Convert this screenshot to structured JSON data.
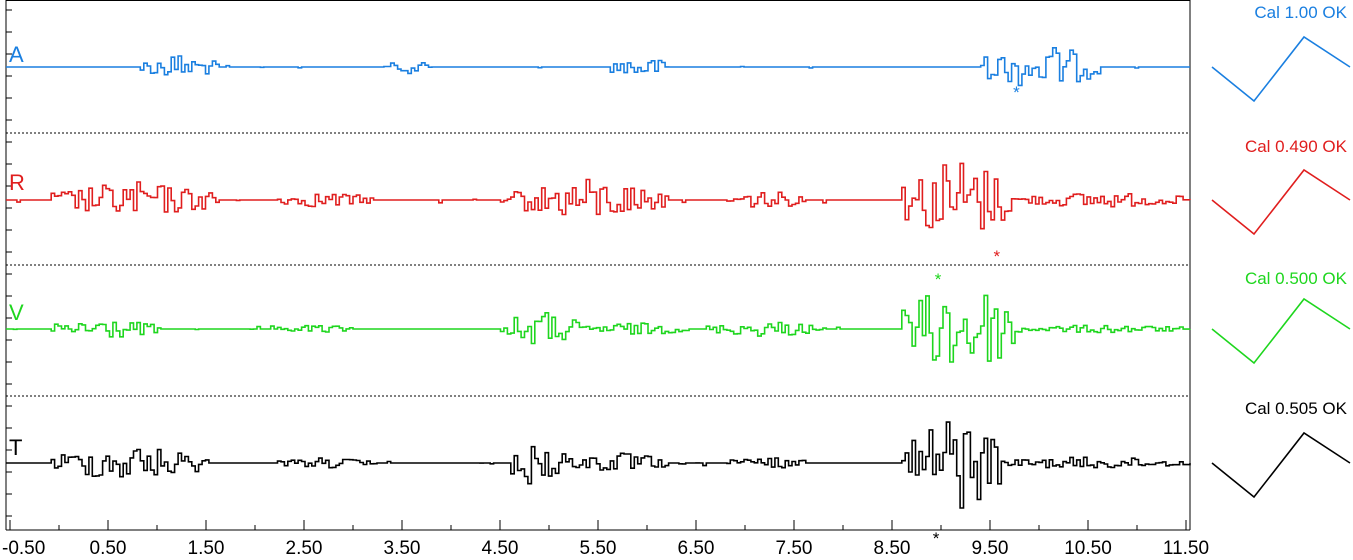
{
  "chart_data": {
    "type": "line",
    "x_ticks": [
      "-0.50",
      "0.50",
      "1.50",
      "2.50",
      "3.50",
      "4.50",
      "5.50",
      "6.50",
      "7.50",
      "8.50",
      "9.50",
      "10.50",
      "11.50"
    ],
    "xlim": [
      -0.5,
      11.5
    ],
    "channels": [
      {
        "label": "A",
        "cal_text": "Cal 1.00 OK",
        "color": "#1a7fe0",
        "marker": "*",
        "marker_x": 9.77,
        "marker_pos": "below",
        "bursts": [
          {
            "start": 0.8,
            "end": 1.6,
            "amp": 0.25
          },
          {
            "start": 3.3,
            "end": 3.8,
            "amp": 0.12
          },
          {
            "start": 5.6,
            "end": 6.2,
            "amp": 0.22
          },
          {
            "start": 9.4,
            "end": 10.6,
            "amp": 0.45
          }
        ]
      },
      {
        "label": "R",
        "cal_text": "Cal 0.490 OK",
        "color": "#e01e1e",
        "marker": "*",
        "marker_x": 9.57,
        "marker_pos": "below",
        "bursts": [
          {
            "start": -0.1,
            "end": 1.6,
            "amp": 0.35
          },
          {
            "start": 2.2,
            "end": 3.2,
            "amp": 0.15
          },
          {
            "start": 4.6,
            "end": 6.2,
            "amp": 0.4
          },
          {
            "start": 6.8,
            "end": 7.6,
            "amp": 0.18
          },
          {
            "start": 8.6,
            "end": 9.7,
            "amp": 0.85
          },
          {
            "start": 9.7,
            "end": 11.5,
            "amp": 0.15
          }
        ]
      },
      {
        "label": "V",
        "cal_text": "Cal 0.500 OK",
        "color": "#1ed61e",
        "marker": "*",
        "marker_x": 8.97,
        "marker_pos": "above",
        "bursts": [
          {
            "start": -0.1,
            "end": 1.0,
            "amp": 0.2
          },
          {
            "start": 2.2,
            "end": 3.0,
            "amp": 0.08
          },
          {
            "start": 4.5,
            "end": 5.3,
            "amp": 0.35
          },
          {
            "start": 5.3,
            "end": 6.4,
            "amp": 0.12
          },
          {
            "start": 6.6,
            "end": 7.8,
            "amp": 0.15
          },
          {
            "start": 8.6,
            "end": 9.8,
            "amp": 0.95
          },
          {
            "start": 9.8,
            "end": 11.5,
            "amp": 0.08
          }
        ]
      },
      {
        "label": "T",
        "cal_text": "Cal 0.505 OK",
        "color": "#000000",
        "marker": "*",
        "marker_x": 8.95,
        "marker_pos": "below",
        "bursts": [
          {
            "start": -0.1,
            "end": 1.5,
            "amp": 0.35
          },
          {
            "start": 2.2,
            "end": 3.2,
            "amp": 0.1
          },
          {
            "start": 4.6,
            "end": 5.2,
            "amp": 0.55
          },
          {
            "start": 5.2,
            "end": 6.2,
            "amp": 0.2
          },
          {
            "start": 6.8,
            "end": 7.6,
            "amp": 0.12
          },
          {
            "start": 8.6,
            "end": 9.6,
            "amp": 1.0
          },
          {
            "start": 9.6,
            "end": 11.5,
            "amp": 0.12
          }
        ]
      }
    ]
  }
}
